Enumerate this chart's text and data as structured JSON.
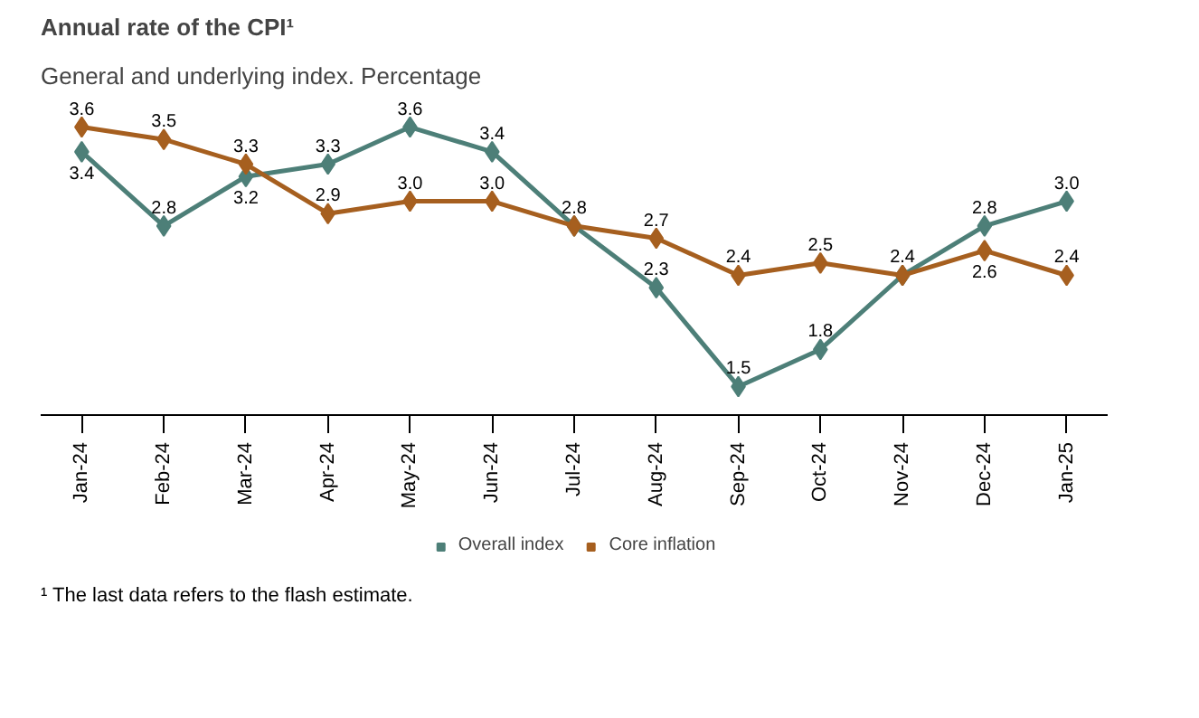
{
  "chart_data": {
    "type": "line",
    "title": "Annual rate of the CPI¹",
    "subtitle": "General and underlying index. Percentage",
    "categories": [
      "Jan-24",
      "Feb-24",
      "Mar-24",
      "Apr-24",
      "May-24",
      "Jun-24",
      "Jul-24",
      "Aug-24",
      "Sep-24",
      "Oct-24",
      "Nov-24",
      "Dec-24",
      "Jan-25"
    ],
    "series": [
      {
        "name": "Overall index",
        "color": "#4d7f78",
        "values": [
          3.4,
          2.8,
          3.2,
          3.3,
          3.6,
          3.4,
          2.8,
          2.3,
          1.5,
          1.8,
          2.4,
          2.8,
          3.0
        ],
        "value_labels": [
          "3.4",
          "2.8",
          "3.2",
          "3.3",
          "3.6",
          "3.4",
          "2.8",
          "2.3",
          "1.5",
          "1.8",
          "2.4",
          "2.8",
          "3.0"
        ]
      },
      {
        "name": "Core inflation",
        "color": "#a65f1f",
        "values": [
          3.6,
          3.5,
          3.3,
          2.9,
          3.0,
          3.0,
          2.8,
          2.7,
          2.4,
          2.5,
          2.4,
          2.6,
          2.4
        ],
        "value_labels": [
          "3.6",
          "3.5",
          "3.3",
          "2.9",
          "3.0",
          "3.0",
          null,
          "2.7",
          "2.4",
          "2.5",
          null,
          "2.6",
          "2.4"
        ]
      }
    ],
    "tick_labels": "x",
    "marker": "diamond",
    "line_style": "solid",
    "legend": "bottom",
    "annotations": [
      "¹ The last data refers to the flash estimate."
    ]
  }
}
